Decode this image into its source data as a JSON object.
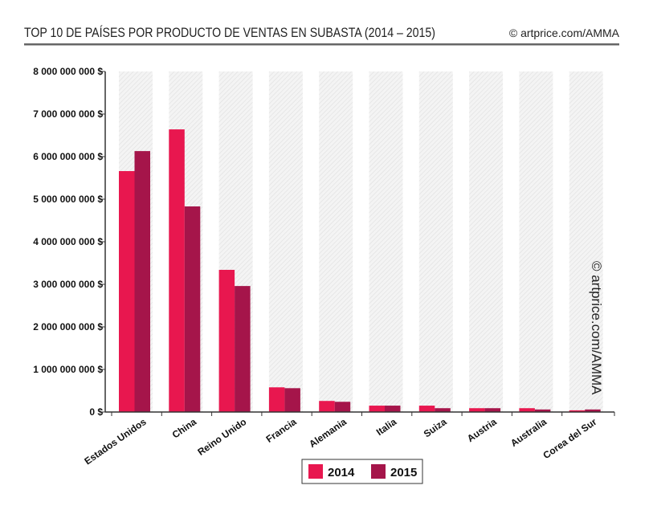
{
  "chart_data": {
    "type": "bar",
    "title": "TOP 10 DE PAÍSES POR PRODUCTO DE VENTAS EN SUBASTA (2014 – 2015)",
    "copyright": "© artprice.com/AMMA",
    "watermark": "© artprice.com/AMMA",
    "xlabel": "",
    "ylabel": "",
    "ylim": [
      0,
      8000000000
    ],
    "yticks": [
      0,
      1000000000,
      2000000000,
      3000000000,
      4000000000,
      5000000000,
      6000000000,
      7000000000,
      8000000000
    ],
    "ytick_labels": [
      "0 $",
      "1 000 000 000 $",
      "2 000 000 000 $",
      "3 000 000 000 $",
      "4 000 000 000 $",
      "5 000 000 000 $",
      "6 000 000 000 $",
      "7 000 000 000 $",
      "8 000 000 000 $"
    ],
    "categories": [
      "Estados Unidos",
      "China",
      "Reino Unido",
      "Francia",
      "Alemania",
      "Italia",
      "Suiza",
      "Austria",
      "Australia",
      "Corea del Sur"
    ],
    "series": [
      {
        "name": "2014",
        "color": "#e8174f",
        "values": [
          5660000000,
          6640000000,
          3340000000,
          580000000,
          260000000,
          150000000,
          150000000,
          90000000,
          90000000,
          40000000
        ]
      },
      {
        "name": "2015",
        "color": "#a5154a",
        "values": [
          6130000000,
          4830000000,
          2960000000,
          560000000,
          240000000,
          150000000,
          90000000,
          90000000,
          60000000,
          60000000
        ]
      }
    ],
    "legend": "bottom",
    "grid": false
  }
}
